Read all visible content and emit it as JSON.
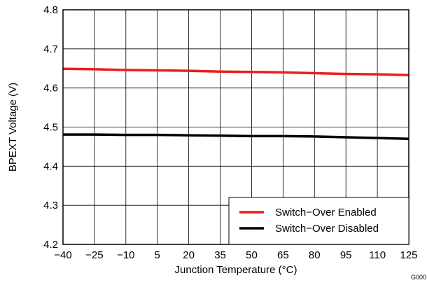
{
  "chart_data": {
    "type": "line",
    "xlabel": "Junction Temperature (°C)",
    "ylabel": "BPEXT Voltage (V)",
    "xlim": [
      -40,
      125
    ],
    "ylim": [
      4.2,
      4.8
    ],
    "x_ticks": [
      -40,
      -25,
      -10,
      5,
      20,
      35,
      50,
      65,
      80,
      95,
      110,
      125
    ],
    "x_tick_labels": [
      "−40",
      "−25",
      "−10",
      "5",
      "20",
      "35",
      "50",
      "65",
      "80",
      "95",
      "110",
      "125"
    ],
    "y_ticks": [
      4.2,
      4.3,
      4.4,
      4.5,
      4.6,
      4.7,
      4.8
    ],
    "y_tick_labels": [
      "4.2",
      "4.3",
      "4.4",
      "4.5",
      "4.6",
      "4.7",
      "4.8"
    ],
    "grid": true,
    "legend_position": "bottom-right",
    "series": [
      {
        "name": "Switch−Over Enabled",
        "color": "#ee1c1c",
        "x": [
          -40,
          -25,
          -10,
          5,
          20,
          35,
          50,
          65,
          80,
          95,
          110,
          125
        ],
        "y": [
          4.649,
          4.648,
          4.646,
          4.645,
          4.644,
          4.642,
          4.641,
          4.64,
          4.638,
          4.636,
          4.635,
          4.633
        ]
      },
      {
        "name": "Switch−Over Disabled",
        "color": "#000000",
        "x": [
          -40,
          -25,
          -10,
          5,
          20,
          35,
          50,
          65,
          80,
          95,
          110,
          125
        ],
        "y": [
          4.481,
          4.481,
          4.48,
          4.48,
          4.479,
          4.478,
          4.477,
          4.477,
          4.476,
          4.474,
          4.472,
          4.47
        ]
      }
    ]
  },
  "figure_id": "G000"
}
